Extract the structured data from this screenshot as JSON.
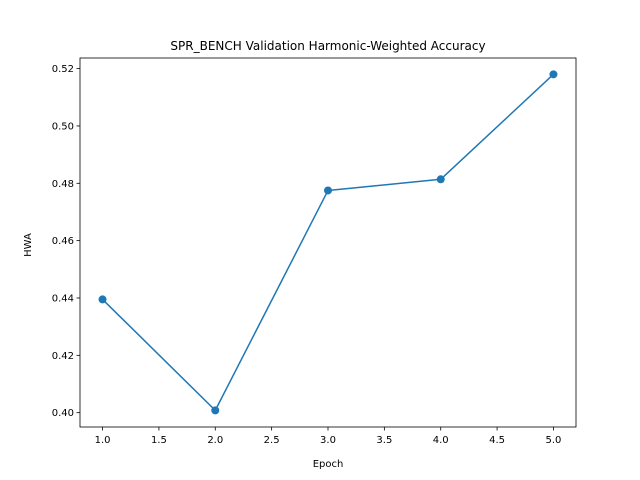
{
  "chart_data": {
    "type": "line",
    "title": "SPR_BENCH Validation Harmonic-Weighted Accuracy",
    "xlabel": "Epoch",
    "ylabel": "HWA",
    "x": [
      1.0,
      2.0,
      3.0,
      4.0,
      5.0
    ],
    "series": [
      {
        "values": [
          0.4395,
          0.4008,
          0.4775,
          0.4814,
          0.518
        ]
      }
    ],
    "xlim": [
      0.8,
      5.2
    ],
    "ylim": [
      0.395,
      0.5237
    ],
    "xticks": [
      1.0,
      1.5,
      2.0,
      2.5,
      3.0,
      3.5,
      4.0,
      4.5,
      5.0
    ],
    "xtick_labels": [
      "1.0",
      "1.5",
      "2.0",
      "2.5",
      "3.0",
      "3.5",
      "4.0",
      "4.5",
      "5.0"
    ],
    "yticks": [
      0.4,
      0.42,
      0.44,
      0.46,
      0.48,
      0.5,
      0.52
    ],
    "ytick_labels": [
      "0.40",
      "0.42",
      "0.44",
      "0.46",
      "0.48",
      "0.50",
      "0.52"
    ],
    "grid": false,
    "legend": "none",
    "colors": {
      "line": "#1f77b4",
      "axis": "#000000",
      "background": "#ffffff"
    }
  }
}
